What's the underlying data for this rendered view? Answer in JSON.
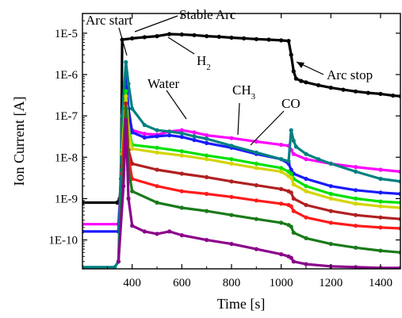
{
  "chart_data": {
    "type": "line",
    "xlabel": "Time [s]",
    "ylabel": "Ion Current [A]",
    "y_scale": "log",
    "xlim": [
      200,
      1480
    ],
    "ylim": [
      2e-11,
      3e-05
    ],
    "x_ticks": [
      {
        "value": 400,
        "label": "400"
      },
      {
        "value": 600,
        "label": "600"
      },
      {
        "value": 800,
        "label": "800"
      },
      {
        "value": 1000,
        "label": "1000"
      },
      {
        "value": 1200,
        "label": "1200"
      },
      {
        "value": 1400,
        "label": "1400"
      }
    ],
    "y_ticks": [
      {
        "value": 1e-10,
        "label": "1E-10"
      },
      {
        "value": 1e-09,
        "label": "1E-9"
      },
      {
        "value": 1e-08,
        "label": "1E-8"
      },
      {
        "value": 1e-07,
        "label": "1E-7"
      },
      {
        "value": 1e-06,
        "label": "1E-6"
      },
      {
        "value": 1e-05,
        "label": "1E-5"
      }
    ],
    "series": [
      {
        "name": "H",
        "name_subscript": "2",
        "color": "#000000",
        "x": [
          200,
          340,
          350,
          355,
          360,
          400,
          450,
          500,
          550,
          600,
          650,
          700,
          750,
          800,
          850,
          900,
          950,
          1000,
          1030,
          1040,
          1050,
          1060,
          1080,
          1100,
          1150,
          1200,
          1250,
          1300,
          1350,
          1400,
          1450,
          1480
        ],
        "y": [
          8e-10,
          8e-10,
          1e-09,
          3e-09,
          7e-06,
          7.5e-06,
          8e-06,
          8.5e-06,
          9.5e-06,
          9.3e-06,
          9e-06,
          8.5e-06,
          8.2e-06,
          7.8e-06,
          7.5e-06,
          7.2e-06,
          7e-06,
          6.7e-06,
          6.5e-06,
          3e-06,
          1.2e-06,
          8e-07,
          7e-07,
          6.5e-07,
          5.5e-07,
          4.8e-07,
          4.3e-07,
          3.9e-07,
          3.6e-07,
          3.4e-07,
          3.1e-07,
          3e-07
        ]
      },
      {
        "name": "Water",
        "color": "#ff00ff",
        "x": [
          200,
          345,
          365,
          375,
          385,
          400,
          450,
          500,
          550,
          600,
          650,
          700,
          800,
          900,
          1000,
          1030,
          1040,
          1050,
          1100,
          1200,
          1300,
          1400,
          1480
        ],
        "y": [
          2.4e-10,
          2.4e-10,
          3e-08,
          8e-07,
          1e-07,
          4.5e-08,
          3.7e-08,
          3.5e-08,
          4.2e-08,
          4.5e-08,
          4e-08,
          3.4e-08,
          2.9e-08,
          2.4e-08,
          2e-08,
          1.9e-08,
          1.5e-08,
          1.2e-08,
          9e-09,
          7e-09,
          5.8e-09,
          5e-09,
          4.5e-09
        ]
      },
      {
        "name": "CH",
        "name_subscript": "3",
        "color": "#1a1aff",
        "x": [
          200,
          345,
          365,
          375,
          385,
          400,
          450,
          500,
          550,
          600,
          650,
          700,
          800,
          900,
          1000,
          1030,
          1040,
          1050,
          1100,
          1200,
          1300,
          1400,
          1480
        ],
        "y": [
          1.6e-10,
          1.6e-10,
          3e-08,
          9e-07,
          1.5e-07,
          4e-08,
          3e-08,
          3.2e-08,
          3.4e-08,
          3.1e-08,
          2.6e-08,
          2.2e-08,
          1.7e-08,
          1.2e-08,
          9e-09,
          7e-09,
          5e-09,
          4e-09,
          3e-09,
          2e-09,
          1.6e-09,
          1.4e-09,
          1.3e-09
        ]
      },
      {
        "name": "CO",
        "color": "#008080",
        "x": [
          200,
          330,
          345,
          360,
          375,
          385,
          400,
          450,
          500,
          550,
          600,
          650,
          700,
          800,
          900,
          1000,
          1030,
          1040,
          1050,
          1060,
          1100,
          1150,
          1200,
          1300,
          1400,
          1480
        ],
        "y": [
          2.2e-11,
          2.2e-11,
          3e-11,
          1e-07,
          2e-06,
          6e-07,
          1.5e-07,
          6e-08,
          4.5e-08,
          4.2e-08,
          3.8e-08,
          3.2e-08,
          2.8e-08,
          1.9e-08,
          1.3e-08,
          9e-09,
          8e-09,
          4.5e-08,
          2.5e-08,
          1.8e-08,
          1.2e-08,
          9e-09,
          7e-09,
          4.5e-09,
          3e-09,
          2.6e-09
        ]
      },
      {
        "name": "",
        "color": "#00e000",
        "x": [
          360,
          375,
          385,
          400,
          500,
          600,
          700,
          800,
          900,
          1000,
          1030,
          1040,
          1050,
          1100,
          1200,
          1300,
          1400,
          1480
        ],
        "y": [
          1.5e-08,
          4e-07,
          5e-08,
          2e-08,
          1.7e-08,
          1.4e-08,
          1.1e-08,
          9e-09,
          7e-09,
          5.5e-09,
          4.5e-09,
          4e-09,
          3e-09,
          2e-09,
          1.3e-09,
          1e-09,
          8.5e-10,
          8e-10
        ]
      },
      {
        "name": "",
        "color": "#d4d400",
        "x": [
          360,
          375,
          385,
          400,
          500,
          600,
          700,
          800,
          900,
          1000,
          1030,
          1040,
          1050,
          1100,
          1200,
          1300,
          1400,
          1480
        ],
        "y": [
          1.2e-08,
          3e-07,
          4e-08,
          1.6e-08,
          1.3e-08,
          1.1e-08,
          9e-09,
          7e-09,
          5.5e-09,
          4.5e-09,
          3.5e-09,
          3.2e-09,
          2.2e-09,
          1.5e-09,
          1e-09,
          7.5e-10,
          6.5e-10,
          6e-10
        ]
      },
      {
        "name": "",
        "color": "#b02020",
        "x": [
          360,
          375,
          385,
          400,
          500,
          600,
          700,
          800,
          900,
          1000,
          1030,
          1040,
          1050,
          1100,
          1200,
          1300,
          1400,
          1480
        ],
        "y": [
          6e-09,
          2e-07,
          1.5e-08,
          7e-09,
          5e-09,
          4e-09,
          3.3e-09,
          2.6e-09,
          2.1e-09,
          1.7e-09,
          1.5e-09,
          1.4e-09,
          1e-09,
          7e-10,
          5e-10,
          4e-10,
          3.5e-10,
          3.2e-10
        ]
      },
      {
        "name": "",
        "color": "#ff1a1a",
        "x": [
          360,
          375,
          385,
          400,
          500,
          600,
          700,
          800,
          900,
          1000,
          1030,
          1040,
          1050,
          1100,
          1200,
          1300,
          1400,
          1480
        ],
        "y": [
          4e-09,
          1.5e-07,
          1e-08,
          3e-09,
          2e-09,
          1.5e-09,
          1.3e-09,
          1.1e-09,
          9e-10,
          7.5e-10,
          7e-10,
          6.5e-10,
          5e-10,
          3.5e-10,
          2.6e-10,
          2.2e-10,
          2e-10,
          1.9e-10
        ]
      },
      {
        "name": "",
        "color": "#1a7a1a",
        "x": [
          345,
          365,
          375,
          385,
          400,
          500,
          600,
          700,
          800,
          900,
          1000,
          1030,
          1040,
          1050,
          1100,
          1200,
          1300,
          1400,
          1480
        ],
        "y": [
          3e-11,
          5e-09,
          1.5e-07,
          5e-09,
          1.5e-09,
          8e-10,
          6e-10,
          5e-10,
          4e-10,
          3.2e-10,
          2.6e-10,
          2.3e-10,
          2.1e-10,
          1.5e-10,
          1.1e-10,
          8e-11,
          6.5e-11,
          5.5e-11,
          5e-11
        ]
      },
      {
        "name": "",
        "color": "#8b008b",
        "x": [
          345,
          365,
          375,
          385,
          400,
          450,
          500,
          550,
          600,
          700,
          800,
          900,
          1000,
          1030,
          1040,
          1050,
          1100,
          1200,
          1300,
          1400,
          1480
        ],
        "y": [
          3e-11,
          2e-09,
          8e-08,
          1e-09,
          2.2e-10,
          1.6e-10,
          1.4e-10,
          1.6e-10,
          1.3e-10,
          1e-10,
          8e-11,
          6e-11,
          4.5e-11,
          4e-11,
          3.7e-11,
          3e-11,
          2.6e-11,
          2.3e-11,
          2.2e-11,
          2.1e-11,
          2.1e-11
        ]
      }
    ],
    "annotations": [
      {
        "id": "arc-start",
        "text": "Arc start"
      },
      {
        "id": "stable-arc",
        "text": "Stable Arc"
      },
      {
        "id": "h2",
        "text": "H",
        "subscript": "2"
      },
      {
        "id": "arc-stop",
        "text": "Arc stop"
      },
      {
        "id": "water",
        "text": "Water"
      },
      {
        "id": "ch3",
        "text": "CH",
        "subscript": "3"
      },
      {
        "id": "co",
        "text": "CO"
      }
    ]
  }
}
